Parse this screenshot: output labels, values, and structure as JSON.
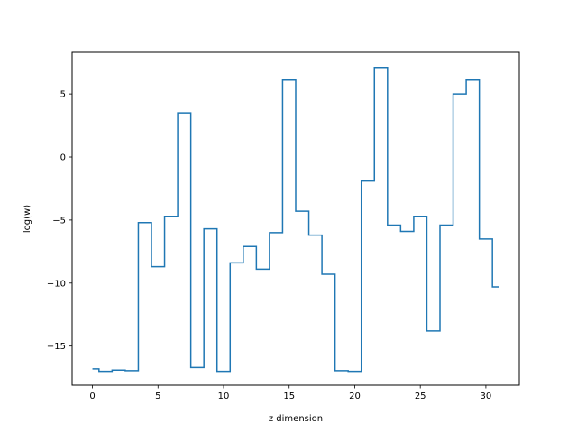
{
  "chart_data": {
    "type": "line",
    "drawstyle": "steps-mid",
    "title": "",
    "xlabel": "z dimension",
    "ylabel": "log(w)",
    "xlim": [
      -1.55,
      32.55
    ],
    "ylim": [
      -18.1,
      8.3
    ],
    "grid": false,
    "x_ticks": [
      0,
      5,
      10,
      15,
      20,
      25,
      30
    ],
    "x_tick_labels": [
      "0",
      "5",
      "10",
      "15",
      "20",
      "25",
      "30"
    ],
    "y_ticks": [
      -15,
      -10,
      -5,
      0,
      5
    ],
    "y_tick_labels": [
      "−15",
      "−10",
      "−5",
      "0",
      "5"
    ],
    "series": [
      {
        "color": "#1f77b4",
        "x": [
          0,
          1,
          2,
          3,
          4,
          5,
          6,
          7,
          8,
          9,
          10,
          11,
          12,
          13,
          14,
          15,
          16,
          17,
          18,
          19,
          20,
          21,
          22,
          23,
          24,
          25,
          26,
          27,
          28,
          29,
          30,
          31
        ],
        "values": [
          -16.8,
          -17.0,
          -16.9,
          -16.95,
          -5.2,
          -8.7,
          -4.7,
          3.5,
          -16.7,
          -5.7,
          -17.0,
          -8.4,
          -7.1,
          -8.9,
          -6.0,
          6.1,
          -4.3,
          -6.2,
          -9.3,
          -16.95,
          -17.0,
          -1.9,
          7.1,
          -5.4,
          -5.9,
          -4.7,
          -13.8,
          -5.4,
          5.0,
          6.1,
          -6.5,
          -10.3
        ]
      }
    ]
  }
}
